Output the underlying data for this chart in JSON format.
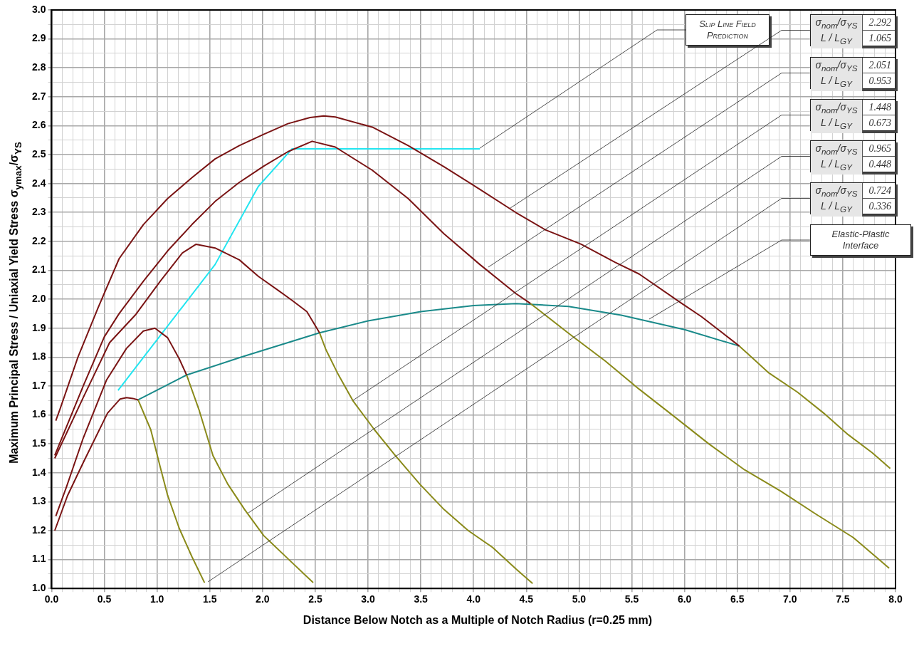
{
  "chart_data": {
    "type": "line",
    "xlabel": "Distance Below Notch as a Multiple of Notch Radius  (r=0.25 mm)",
    "ylabel": "Maximum Principal Stress / Uniaxial Yield Stress  σ$_{ymax}$/σ$_{YS}$",
    "xlim": [
      0,
      8
    ],
    "ylim": [
      1,
      3
    ],
    "xticks": [
      {
        "value": 0,
        "label": "0.0"
      },
      {
        "value": 0.1,
        "label": null
      },
      {
        "value": 0.2,
        "label": null
      },
      {
        "value": 0.3,
        "label": null
      },
      {
        "value": 0.4,
        "label": null
      },
      0.5,
      {
        "value": 0.6,
        "label": null
      },
      {
        "value": 0.7,
        "label": null
      },
      {
        "value": 0.8,
        "label": null
      },
      {
        "value": 0.9,
        "label": null
      },
      {
        "value": 1,
        "label": "1.0"
      },
      {
        "value": 1.1,
        "label": null
      },
      {
        "value": 1.2,
        "label": null
      },
      {
        "value": 1.3,
        "label": null
      },
      {
        "value": 1.4,
        "label": null
      },
      1.5,
      {
        "value": 1.6,
        "label": null
      },
      {
        "value": 1.7,
        "label": null
      },
      {
        "value": 1.8,
        "label": null
      },
      {
        "value": 1.9,
        "label": null
      },
      {
        "value": 2,
        "label": "2.0"
      },
      {
        "value": 2.1,
        "label": null
      },
      {
        "value": 2.2,
        "label": null
      },
      {
        "value": 2.3,
        "label": null
      },
      {
        "value": 2.4,
        "label": null
      },
      2.5,
      {
        "value": 2.6,
        "label": null
      },
      {
        "value": 2.7,
        "label": null
      },
      {
        "value": 2.8,
        "label": null
      },
      {
        "value": 2.9,
        "label": null
      },
      {
        "value": 3,
        "label": "3.0"
      },
      {
        "value": 3.1,
        "label": null
      },
      {
        "value": 3.2,
        "label": null
      },
      {
        "value": 3.3,
        "label": null
      },
      {
        "value": 3.4,
        "label": null
      },
      3.5,
      {
        "value": 3.6,
        "label": null
      },
      {
        "value": 3.7,
        "label": null
      },
      {
        "value": 3.8,
        "label": null
      },
      {
        "value": 3.9,
        "label": null
      },
      {
        "value": 4,
        "label": "4.0"
      },
      {
        "value": 4.1,
        "label": null
      },
      {
        "value": 4.2,
        "label": null
      },
      {
        "value": 4.3,
        "label": null
      },
      {
        "value": 4.4,
        "label": null
      },
      4.5,
      {
        "value": 4.6,
        "label": null
      },
      {
        "value": 4.7,
        "label": null
      },
      {
        "value": 4.8,
        "label": null
      },
      {
        "value": 4.9,
        "label": null
      },
      {
        "value": 5,
        "label": "5.0"
      },
      {
        "value": 5.1,
        "label": null
      },
      {
        "value": 5.2,
        "label": null
      },
      {
        "value": 5.3,
        "label": null
      },
      {
        "value": 5.4,
        "label": null
      },
      5.5,
      {
        "value": 5.6,
        "label": null
      },
      {
        "value": 5.7,
        "label": null
      },
      {
        "value": 5.8,
        "label": null
      },
      {
        "value": 5.9,
        "label": null
      },
      {
        "value": 6,
        "label": "6.0"
      },
      {
        "value": 6.1,
        "label": null
      },
      {
        "value": 6.2,
        "label": null
      },
      {
        "value": 6.3,
        "label": null
      },
      {
        "value": 6.4,
        "label": null
      },
      6.5,
      {
        "value": 6.6,
        "label": null
      },
      {
        "value": 6.7,
        "label": null
      },
      {
        "value": 6.8,
        "label": null
      },
      {
        "value": 6.9,
        "label": null
      },
      {
        "value": 7,
        "label": "7.0"
      },
      {
        "value": 7.1,
        "label": null
      },
      {
        "value": 7.2,
        "label": null
      },
      {
        "value": 7.3,
        "label": null
      },
      {
        "value": 7.4,
        "label": null
      },
      7.5,
      {
        "value": 7.6,
        "label": null
      },
      {
        "value": 7.7,
        "label": null
      },
      {
        "value": 7.8,
        "label": null
      },
      {
        "value": 7.9,
        "label": null
      },
      {
        "value": 8,
        "label": "8.0"
      }
    ],
    "yticks": [
      {
        "value": 1,
        "label": "1.0"
      },
      {
        "value": 1.05,
        "label": null
      },
      1.1,
      {
        "value": 1.15,
        "label": null
      },
      1.2,
      {
        "value": 1.25,
        "label": null
      },
      1.3,
      {
        "value": 1.35,
        "label": null
      },
      1.4,
      {
        "value": 1.45,
        "label": null
      },
      1.5,
      {
        "value": 1.55,
        "label": null
      },
      1.6,
      {
        "value": 1.65,
        "label": null
      },
      1.7,
      {
        "value": 1.75,
        "label": null
      },
      1.8,
      {
        "value": 1.85,
        "label": null
      },
      1.9,
      {
        "value": 1.95,
        "label": null
      },
      {
        "value": 2,
        "label": "2.0"
      },
      {
        "value": 2.05,
        "label": null
      },
      2.1,
      {
        "value": 2.15,
        "label": null
      },
      2.2,
      {
        "value": 2.25,
        "label": null
      },
      2.3,
      {
        "value": 2.35,
        "label": null
      },
      2.4,
      {
        "value": 2.45,
        "label": null
      },
      2.5,
      {
        "value": 2.55,
        "label": null
      },
      2.6,
      {
        "value": 2.65,
        "label": null
      },
      2.7,
      {
        "value": 2.75,
        "label": null
      },
      2.8,
      {
        "value": 2.85,
        "label": null
      },
      2.9,
      {
        "value": 2.95,
        "label": null
      },
      {
        "value": 3,
        "label": "3.0"
      }
    ],
    "grid": true,
    "legend": false,
    "marker": "none",
    "line_style": "solid",
    "series": [
      {
        "color": "#7a1414",
        "x": [
          0.04,
          0.08,
          0.25,
          0.44,
          0.64,
          0.87,
          1.1,
          1.33,
          1.55,
          1.78,
          2.01,
          2.24,
          2.45,
          2.58,
          2.69,
          3.04,
          3.38,
          3.72,
          4.06,
          4.4,
          4.68,
          5.02,
          5.34,
          5.57,
          5.96,
          6.16,
          6.52
        ],
        "values": [
          1.58,
          1.62,
          1.8,
          1.97,
          2.14,
          2.258,
          2.348,
          2.42,
          2.485,
          2.531,
          2.57,
          2.607,
          2.628,
          2.634,
          2.63,
          2.595,
          2.531,
          2.458,
          2.38,
          2.3,
          2.24,
          2.19,
          2.128,
          2.087,
          1.989,
          1.94,
          1.838
        ]
      },
      {
        "color": "#8a8a1a",
        "x": [
          6.52,
          6.8,
          7.07,
          7.32,
          7.55,
          7.78,
          7.95
        ],
        "values": [
          1.838,
          1.745,
          1.679,
          1.606,
          1.532,
          1.469,
          1.415
        ]
      },
      {
        "color": "#7a1414",
        "x": [
          0.03,
          0.3,
          0.5,
          0.64,
          0.87,
          1.1,
          1.33,
          1.55,
          1.78,
          2.01,
          2.24,
          2.47,
          2.69,
          3.04,
          3.38,
          3.72,
          4.06,
          4.4,
          4.54
        ],
        "values": [
          1.46,
          1.7,
          1.87,
          1.95,
          2.062,
          2.167,
          2.258,
          2.338,
          2.404,
          2.46,
          2.51,
          2.546,
          2.526,
          2.446,
          2.348,
          2.226,
          2.12,
          2.02,
          1.985
        ]
      },
      {
        "color": "#8a8a1a",
        "x": [
          4.54,
          4.93,
          5.25,
          5.57,
          5.89,
          6.23,
          6.57,
          6.91,
          7.25,
          7.6,
          7.94
        ],
        "values": [
          1.985,
          1.874,
          1.786,
          1.689,
          1.598,
          1.5,
          1.41,
          1.337,
          1.256,
          1.176,
          1.07
        ]
      },
      {
        "color": "#7a1414",
        "x": [
          0.03,
          0.3,
          0.55,
          0.8,
          1.03,
          1.24,
          1.37,
          1.55,
          1.78,
          1.96,
          2.15,
          2.28,
          2.42,
          2.54
        ],
        "values": [
          1.45,
          1.66,
          1.85,
          1.948,
          2.062,
          2.16,
          2.19,
          2.177,
          2.136,
          2.079,
          2.03,
          1.996,
          1.957,
          1.884
        ]
      },
      {
        "color": "#8a8a1a",
        "x": [
          2.54,
          2.6,
          2.71,
          2.86,
          3.06,
          3.26,
          3.49,
          3.72,
          3.95,
          4.18,
          4.4,
          4.56
        ],
        "values": [
          1.884,
          1.826,
          1.745,
          1.647,
          1.549,
          1.459,
          1.361,
          1.273,
          1.2,
          1.142,
          1.068,
          1.017
        ]
      },
      {
        "color": "#7a1414",
        "x": [
          0.04,
          0.14,
          0.3,
          0.52,
          0.71,
          0.87,
          0.98,
          1.1,
          1.21,
          1.28
        ],
        "values": [
          1.25,
          1.35,
          1.52,
          1.72,
          1.83,
          1.89,
          1.9,
          1.867,
          1.794,
          1.738
        ]
      },
      {
        "color": "#8a8a1a",
        "x": [
          1.28,
          1.4,
          1.53,
          1.67,
          1.83,
          2.01,
          2.24,
          2.48
        ],
        "values": [
          1.738,
          1.615,
          1.459,
          1.361,
          1.273,
          1.183,
          1.103,
          1.02
        ]
      },
      {
        "color": "#7a1414",
        "x": [
          0.03,
          0.15,
          0.3,
          0.53,
          0.65,
          0.71,
          0.77,
          0.82
        ],
        "values": [
          1.2,
          1.32,
          1.435,
          1.606,
          1.655,
          1.66,
          1.657,
          1.652
        ]
      },
      {
        "color": "#8a8a1a",
        "x": [
          0.82,
          0.94,
          1.03,
          1.1,
          1.21,
          1.33,
          1.45
        ],
        "values": [
          1.652,
          1.549,
          1.42,
          1.322,
          1.208,
          1.11,
          1.02
        ]
      },
      {
        "color": "#1a8a8a",
        "x": [
          0.82,
          1.28,
          1.8,
          2.54,
          3,
          3.5,
          4,
          4.4,
          4.9,
          5.4,
          6,
          6.52
        ],
        "values": [
          1.652,
          1.738,
          1.8,
          1.884,
          1.925,
          1.957,
          1.978,
          1.985,
          1.975,
          1.945,
          1.895,
          1.838
        ]
      },
      {
        "color": "#22e5f0",
        "x": [
          0.63,
          1.55,
          1.96,
          2.28,
          4.06
        ],
        "values": [
          1.685,
          2.12,
          2.39,
          2.52,
          2.52
        ]
      }
    ],
    "annotations": [
      "Slip Line Field Prediction",
      "σ$_{nom}$/σ$_{YS}$ 2.292\nL / L$_{GY}$ 1.065",
      "σ$_{nom}$/σ$_{YS}$ 2.051\nL / L$_{GY}$ 0.953",
      "σ$_{nom}$/σ$_{YS}$ 1.448\nL / L$_{GY}$ 0.673",
      "σ$_{nom}$/σ$_{YS}$ 0.965\nL / L$_{GY}$ 0.448",
      "σ$_{nom}$/σ$_{YS}$ 0.724\nL / L$_{GY}$ 0.336",
      "Elastic-Plastic Interface"
    ]
  }
}
